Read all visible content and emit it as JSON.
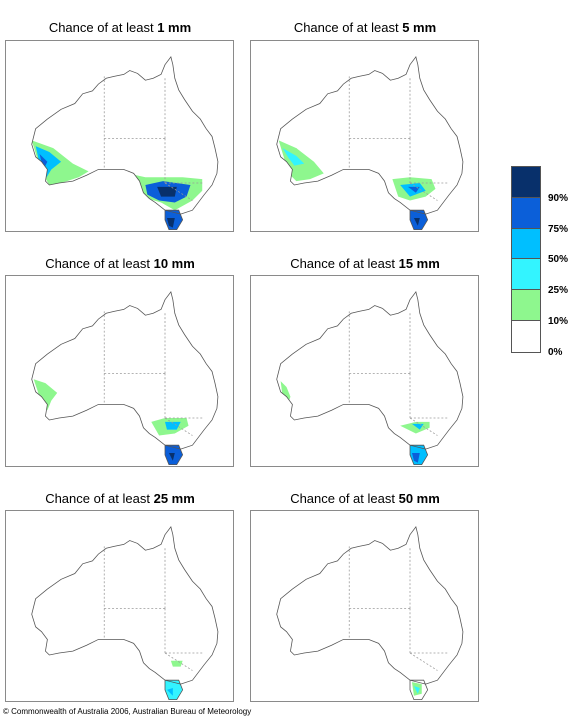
{
  "panels": [
    {
      "title_prefix": "Chance of at least ",
      "amount": "1 mm"
    },
    {
      "title_prefix": "Chance of at least ",
      "amount": "5 mm"
    },
    {
      "title_prefix": "Chance of at least ",
      "amount": "10 mm"
    },
    {
      "title_prefix": "Chance of at least ",
      "amount": "15 mm"
    },
    {
      "title_prefix": "Chance of at least ",
      "amount": "25 mm"
    },
    {
      "title_prefix": "Chance of at least ",
      "amount": "50 mm"
    }
  ],
  "legend": {
    "colors": [
      "#08306b",
      "#0b5fd9",
      "#00bfff",
      "#33f4ff",
      "#8ef78e",
      "#ffffff"
    ],
    "labels": [
      "90%",
      "75%",
      "50%",
      "25%",
      "10%",
      "0%"
    ]
  },
  "copyright": "© Commonwealth of Australia 2006, Australian Bureau of Meteorology"
}
